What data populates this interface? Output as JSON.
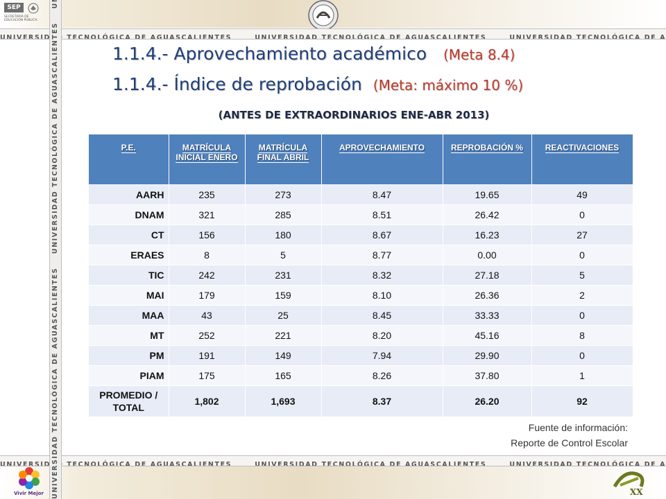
{
  "header": {
    "sep_label": "SEP",
    "sep_sub": "SECRETARÍA DE EDUCACIÓN PÚBLICA"
  },
  "stripe_text": "UNIVERSIDAD TECNOLÓGICA DE AGUASCALIENTES",
  "title1": {
    "main": "1.1.4.- Aprovechamiento académico",
    "meta": "(Meta 8.4)"
  },
  "title2": {
    "main": "1.1.4.- Índice de reprobación",
    "meta": "(Meta: máximo 10 %)"
  },
  "subtitle": "(ANTES DE EXTRAORDINARIOS ENE-ABR 2013)",
  "table": {
    "headers": [
      "P.E.",
      "MATRÍCULA INICIAL ENERO",
      "MATRÍCULA FINAL ABRIL",
      "APROVECHAMIENTO",
      "REPROBACIÓN %",
      "REACTIVACIONES"
    ],
    "rows": [
      [
        "AARH",
        "235",
        "273",
        "8.47",
        "19.65",
        "49"
      ],
      [
        "DNAM",
        "321",
        "285",
        "8.51",
        "26.42",
        "0"
      ],
      [
        "CT",
        "156",
        "180",
        "8.67",
        "16.23",
        "27"
      ],
      [
        "ERAES",
        "8",
        "5",
        "8.77",
        "0.00",
        "0"
      ],
      [
        "TIC",
        "242",
        "231",
        "8.32",
        "27.18",
        "5"
      ],
      [
        "MAI",
        "179",
        "159",
        "8.10",
        "26.36",
        "2"
      ],
      [
        "MAA",
        "43",
        "25",
        "8.45",
        "33.33",
        "0"
      ],
      [
        "MT",
        "252",
        "221",
        "8.20",
        "45.16",
        "8"
      ],
      [
        "PM",
        "191",
        "149",
        "7.94",
        "29.90",
        "0"
      ],
      [
        "PIAM",
        "175",
        "165",
        "8.26",
        "37.80",
        "1"
      ]
    ],
    "total": [
      "PROMEDIO / TOTAL",
      "1,802",
      "1,693",
      "8.37",
      "26.20",
      "92"
    ]
  },
  "source": {
    "line1": "Fuente de información:",
    "line2": "Reporte de Control Escolar"
  },
  "footer": {
    "vivir_label": "Vivir Mejor"
  },
  "colors": {
    "header_blue": "#4f81bd",
    "title_blue": "#1f3f7a",
    "meta_red": "#c0392b"
  }
}
